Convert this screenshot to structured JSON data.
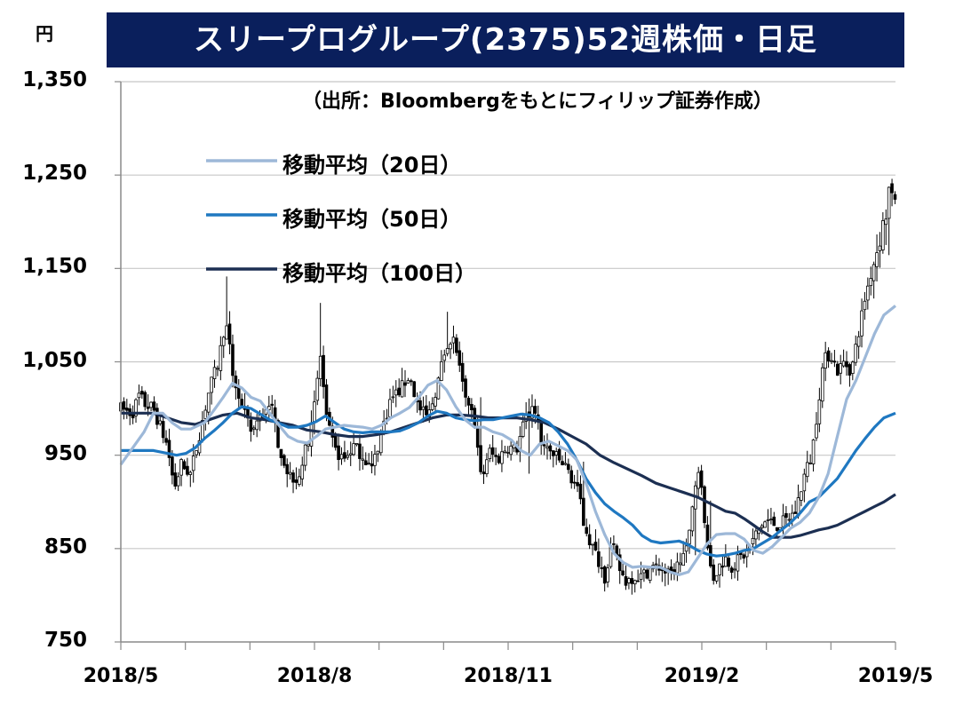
{
  "title": "スリープログループ(2375)52週株価・日足",
  "unit": "円",
  "source": "（出所：Bloombergをもとにフィリップ証券作成）",
  "chart_data": {
    "type": "candlestick+line",
    "title": "スリープログループ(2375)52週株価・日足",
    "unit": "円",
    "ylim": [
      750,
      1350
    ],
    "y_ticks": [
      "1,350",
      "1,250",
      "1,150",
      "1,050",
      "950",
      "850",
      "750"
    ],
    "y_tick_values": [
      1350,
      1250,
      1150,
      1050,
      950,
      850,
      750
    ],
    "x_ticks": [
      "2018/5",
      "2018/8",
      "2018/11",
      "2019/2",
      "2019/5"
    ],
    "grid": "horizontal",
    "legend_position": "top-left",
    "colors": {
      "ma20": "#9db8d8",
      "ma50": "#1f78c1",
      "ma100": "#1c2f52",
      "candle": "#000000"
    },
    "price_path": [
      [
        0,
        1000
      ],
      [
        5,
        995
      ],
      [
        8,
        1015
      ],
      [
        10,
        1005
      ],
      [
        14,
        1000
      ],
      [
        20,
        960
      ],
      [
        23,
        915
      ],
      [
        26,
        940
      ],
      [
        30,
        930
      ],
      [
        34,
        975
      ],
      [
        38,
        1020
      ],
      [
        42,
        1050
      ],
      [
        45,
        1095
      ],
      [
        48,
        1040
      ],
      [
        52,
        1000
      ],
      [
        56,
        975
      ],
      [
        60,
        990
      ],
      [
        64,
        1010
      ],
      [
        68,
        960
      ],
      [
        72,
        930
      ],
      [
        76,
        925
      ],
      [
        80,
        960
      ],
      [
        84,
        1020
      ],
      [
        86,
        1060
      ],
      [
        88,
        990
      ],
      [
        92,
        955
      ],
      [
        96,
        945
      ],
      [
        100,
        960
      ],
      [
        104,
        950
      ],
      [
        108,
        935
      ],
      [
        112,
        975
      ],
      [
        116,
        1010
      ],
      [
        120,
        1020
      ],
      [
        124,
        1035
      ],
      [
        128,
        1000
      ],
      [
        132,
        990
      ],
      [
        136,
        1025
      ],
      [
        140,
        1070
      ],
      [
        143,
        1080
      ],
      [
        146,
        1035
      ],
      [
        149,
        1000
      ],
      [
        152,
        990
      ],
      [
        155,
        920
      ],
      [
        158,
        955
      ],
      [
        162,
        945
      ],
      [
        166,
        960
      ],
      [
        170,
        955
      ],
      [
        174,
        990
      ],
      [
        178,
        1000
      ],
      [
        181,
        960
      ],
      [
        184,
        955
      ],
      [
        188,
        945
      ],
      [
        192,
        935
      ],
      [
        196,
        915
      ],
      [
        199,
        880
      ],
      [
        202,
        855
      ],
      [
        205,
        840
      ],
      [
        208,
        820
      ],
      [
        211,
        855
      ],
      [
        214,
        830
      ],
      [
        217,
        815
      ],
      [
        220,
        820
      ],
      [
        224,
        820
      ],
      [
        228,
        830
      ],
      [
        232,
        830
      ],
      [
        236,
        820
      ],
      [
        240,
        835
      ],
      [
        244,
        855
      ],
      [
        247,
        920
      ],
      [
        249,
        940
      ],
      [
        251,
        880
      ],
      [
        254,
        815
      ],
      [
        257,
        830
      ],
      [
        260,
        840
      ],
      [
        263,
        830
      ],
      [
        266,
        840
      ],
      [
        269,
        845
      ],
      [
        272,
        860
      ],
      [
        275,
        875
      ],
      [
        278,
        880
      ],
      [
        282,
        875
      ],
      [
        286,
        880
      ],
      [
        290,
        890
      ],
      [
        294,
        930
      ],
      [
        297,
        950
      ],
      [
        299,
        990
      ],
      [
        302,
        1050
      ],
      [
        305,
        1060
      ],
      [
        308,
        1040
      ],
      [
        311,
        1050
      ],
      [
        314,
        1040
      ],
      [
        317,
        1080
      ],
      [
        320,
        1120
      ],
      [
        323,
        1150
      ],
      [
        326,
        1180
      ],
      [
        329,
        1210
      ],
      [
        331,
        1250
      ],
      [
        333,
        1210
      ]
    ],
    "ma20": [
      [
        0,
        940
      ],
      [
        10,
        975
      ],
      [
        14,
        995
      ],
      [
        18,
        995
      ],
      [
        22,
        985
      ],
      [
        26,
        978
      ],
      [
        30,
        978
      ],
      [
        36,
        985
      ],
      [
        40,
        998
      ],
      [
        44,
        1012
      ],
      [
        48,
        1027
      ],
      [
        52,
        1022
      ],
      [
        56,
        1012
      ],
      [
        60,
        1008
      ],
      [
        64,
        995
      ],
      [
        68,
        982
      ],
      [
        72,
        970
      ],
      [
        76,
        965
      ],
      [
        80,
        963
      ],
      [
        84,
        970
      ],
      [
        88,
        978
      ],
      [
        92,
        980
      ],
      [
        96,
        982
      ],
      [
        100,
        981
      ],
      [
        104,
        980
      ],
      [
        108,
        978
      ],
      [
        112,
        982
      ],
      [
        116,
        990
      ],
      [
        120,
        995
      ],
      [
        124,
        1001
      ],
      [
        128,
        1012
      ],
      [
        132,
        1025
      ],
      [
        136,
        1030
      ],
      [
        140,
        1020
      ],
      [
        144,
        1002
      ],
      [
        148,
        988
      ],
      [
        152,
        980
      ],
      [
        156,
        980
      ],
      [
        160,
        975
      ],
      [
        164,
        972
      ],
      [
        168,
        966
      ],
      [
        172,
        955
      ],
      [
        176,
        950
      ],
      [
        180,
        962
      ],
      [
        184,
        965
      ],
      [
        188,
        960
      ],
      [
        192,
        955
      ],
      [
        196,
        945
      ],
      [
        200,
        920
      ],
      [
        204,
        890
      ],
      [
        208,
        865
      ],
      [
        212,
        845
      ],
      [
        216,
        835
      ],
      [
        220,
        830
      ],
      [
        224,
        831
      ],
      [
        228,
        830
      ],
      [
        232,
        830
      ],
      [
        236,
        825
      ],
      [
        240,
        822
      ],
      [
        244,
        825
      ],
      [
        248,
        840
      ],
      [
        252,
        855
      ],
      [
        256,
        865
      ],
      [
        260,
        866
      ],
      [
        264,
        866
      ],
      [
        268,
        860
      ],
      [
        272,
        848
      ],
      [
        276,
        845
      ],
      [
        280,
        852
      ],
      [
        284,
        862
      ],
      [
        288,
        872
      ],
      [
        292,
        878
      ],
      [
        296,
        888
      ],
      [
        300,
        905
      ],
      [
        304,
        930
      ],
      [
        308,
        970
      ],
      [
        312,
        1010
      ],
      [
        316,
        1030
      ],
      [
        320,
        1055
      ],
      [
        324,
        1080
      ],
      [
        328,
        1100
      ],
      [
        333,
        1110
      ]
    ],
    "ma50": [
      [
        0,
        955
      ],
      [
        8,
        955
      ],
      [
        14,
        955
      ],
      [
        20,
        952
      ],
      [
        24,
        950
      ],
      [
        28,
        952
      ],
      [
        32,
        958
      ],
      [
        36,
        968
      ],
      [
        40,
        976
      ],
      [
        44,
        985
      ],
      [
        48,
        995
      ],
      [
        52,
        1002
      ],
      [
        56,
        1000
      ],
      [
        60,
        994
      ],
      [
        64,
        988
      ],
      [
        68,
        984
      ],
      [
        72,
        980
      ],
      [
        76,
        980
      ],
      [
        80,
        982
      ],
      [
        84,
        986
      ],
      [
        88,
        992
      ],
      [
        92,
        985
      ],
      [
        96,
        978
      ],
      [
        100,
        975
      ],
      [
        104,
        974
      ],
      [
        108,
        975
      ],
      [
        112,
        975
      ],
      [
        116,
        975
      ],
      [
        120,
        976
      ],
      [
        124,
        980
      ],
      [
        128,
        985
      ],
      [
        132,
        992
      ],
      [
        136,
        997
      ],
      [
        140,
        995
      ],
      [
        144,
        990
      ],
      [
        148,
        988
      ],
      [
        152,
        987
      ],
      [
        156,
        988
      ],
      [
        160,
        988
      ],
      [
        164,
        990
      ],
      [
        168,
        992
      ],
      [
        172,
        994
      ],
      [
        176,
        993
      ],
      [
        180,
        990
      ],
      [
        184,
        985
      ],
      [
        188,
        975
      ],
      [
        192,
        962
      ],
      [
        196,
        945
      ],
      [
        200,
        925
      ],
      [
        204,
        910
      ],
      [
        208,
        898
      ],
      [
        212,
        890
      ],
      [
        216,
        883
      ],
      [
        220,
        875
      ],
      [
        224,
        864
      ],
      [
        228,
        858
      ],
      [
        232,
        856
      ],
      [
        236,
        857
      ],
      [
        240,
        858
      ],
      [
        244,
        854
      ],
      [
        248,
        848
      ],
      [
        252,
        844
      ],
      [
        256,
        842
      ],
      [
        260,
        843
      ],
      [
        264,
        845
      ],
      [
        268,
        848
      ],
      [
        272,
        850
      ],
      [
        276,
        856
      ],
      [
        280,
        862
      ],
      [
        284,
        870
      ],
      [
        288,
        878
      ],
      [
        292,
        888
      ],
      [
        296,
        900
      ],
      [
        300,
        905
      ],
      [
        304,
        915
      ],
      [
        308,
        925
      ],
      [
        312,
        940
      ],
      [
        316,
        955
      ],
      [
        320,
        968
      ],
      [
        324,
        980
      ],
      [
        328,
        990
      ],
      [
        333,
        995
      ]
    ],
    "ma100": [
      [
        0,
        995
      ],
      [
        8,
        995
      ],
      [
        14,
        995
      ],
      [
        20,
        990
      ],
      [
        26,
        985
      ],
      [
        32,
        983
      ],
      [
        38,
        988
      ],
      [
        44,
        993
      ],
      [
        50,
        995
      ],
      [
        56,
        990
      ],
      [
        62,
        988
      ],
      [
        68,
        985
      ],
      [
        74,
        982
      ],
      [
        80,
        977
      ],
      [
        86,
        975
      ],
      [
        92,
        972
      ],
      [
        98,
        970
      ],
      [
        104,
        970
      ],
      [
        110,
        972
      ],
      [
        116,
        975
      ],
      [
        122,
        980
      ],
      [
        128,
        985
      ],
      [
        134,
        990
      ],
      [
        140,
        993
      ],
      [
        146,
        993
      ],
      [
        152,
        992
      ],
      [
        158,
        990
      ],
      [
        164,
        990
      ],
      [
        170,
        990
      ],
      [
        176,
        988
      ],
      [
        182,
        985
      ],
      [
        188,
        978
      ],
      [
        194,
        970
      ],
      [
        200,
        962
      ],
      [
        206,
        950
      ],
      [
        212,
        942
      ],
      [
        218,
        935
      ],
      [
        224,
        928
      ],
      [
        230,
        920
      ],
      [
        236,
        915
      ],
      [
        242,
        910
      ],
      [
        248,
        905
      ],
      [
        252,
        900
      ],
      [
        256,
        895
      ],
      [
        260,
        890
      ],
      [
        264,
        888
      ],
      [
        268,
        882
      ],
      [
        272,
        875
      ],
      [
        276,
        868
      ],
      [
        280,
        862
      ],
      [
        284,
        862
      ],
      [
        288,
        862
      ],
      [
        292,
        864
      ],
      [
        296,
        867
      ],
      [
        300,
        870
      ],
      [
        304,
        872
      ],
      [
        308,
        875
      ],
      [
        312,
        880
      ],
      [
        316,
        885
      ],
      [
        320,
        890
      ],
      [
        324,
        895
      ],
      [
        328,
        900
      ],
      [
        333,
        908
      ]
    ],
    "series": [
      {
        "name": "移動平均（20日）"
      },
      {
        "name": "移動平均（50日）"
      },
      {
        "name": "移動平均（100日）"
      }
    ]
  }
}
